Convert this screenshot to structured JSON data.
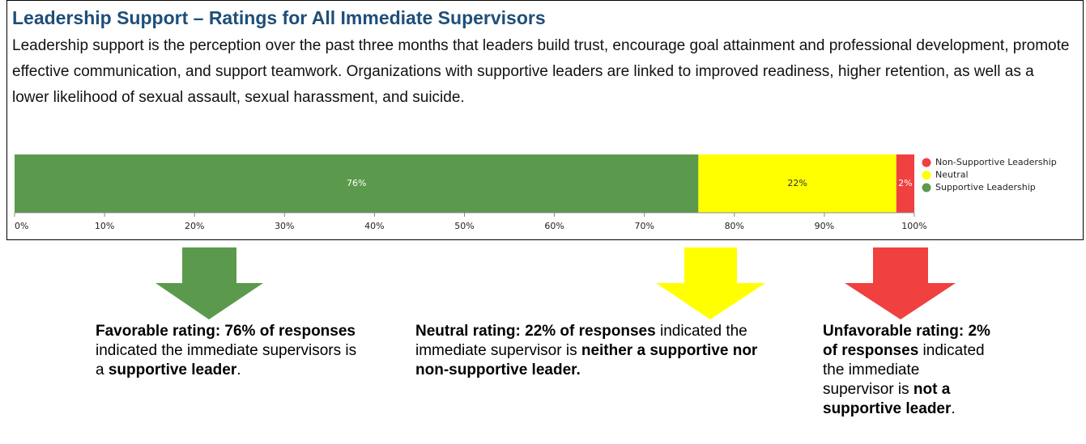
{
  "chart_data": {
    "type": "stacked-hbar",
    "title": "Leadership Support – Ratings for All Immediate Supervisors",
    "subtitle": "Leadership support is the perception over the past three months that leaders build trust, encourage goal attainment and professional development, promote effective communication, and support teamwork. Organizations with supportive leaders are linked to improved readiness, higher retention, as well as a lower likelihood of sexual assault, sexual harassment, and suicide.",
    "series": [
      {
        "name": "Supportive Leadership",
        "color": "#5b9a4c",
        "label_color": "#ffffff",
        "values": [
          76
        ],
        "value_labels": [
          "76%"
        ]
      },
      {
        "name": "Neutral",
        "color": "#ffff00",
        "label_color": "#333333",
        "values": [
          22
        ],
        "value_labels": [
          "22%"
        ]
      },
      {
        "name": "Non-Supportive Leadership",
        "color": "#f04040",
        "label_color": "#ffffff",
        "values": [
          2
        ],
        "value_labels": [
          "2%"
        ]
      }
    ],
    "xlim": [
      0,
      100
    ],
    "xticks": [
      {
        "value": 0,
        "label": "0%"
      },
      {
        "value": 10,
        "label": "10%"
      },
      {
        "value": 20,
        "label": "20%"
      },
      {
        "value": 30,
        "label": "30%"
      },
      {
        "value": 40,
        "label": "40%"
      },
      {
        "value": 50,
        "label": "50%"
      },
      {
        "value": 60,
        "label": "60%"
      },
      {
        "value": 70,
        "label": "70%"
      },
      {
        "value": 80,
        "label": "80%"
      },
      {
        "value": 90,
        "label": "90%"
      },
      {
        "value": 100,
        "label": "100%"
      }
    ],
    "legend": "right",
    "legend_order": "reversed",
    "annotations": [
      [
        {
          "text": "Favorable rating: 76% of responses",
          "bold": true
        },
        {
          "text": " indicated the immediate supervisors is a "
        },
        {
          "text": "supportive leader",
          "bold": true
        },
        {
          "text": "."
        }
      ],
      [
        {
          "text": "Neutral rating: 22% of responses",
          "bold": true
        },
        {
          "text": " indicated the immediate supervisor is "
        },
        {
          "text": "neither a supportive nor non-supportive leader.",
          "bold": true
        }
      ],
      [
        {
          "text": "Unfavorable rating: 2% of responses",
          "bold": true
        },
        {
          "text": " indicated the immediate supervisor is "
        },
        {
          "text": "not a supportive leader",
          "bold": true
        },
        {
          "text": "."
        }
      ]
    ]
  }
}
